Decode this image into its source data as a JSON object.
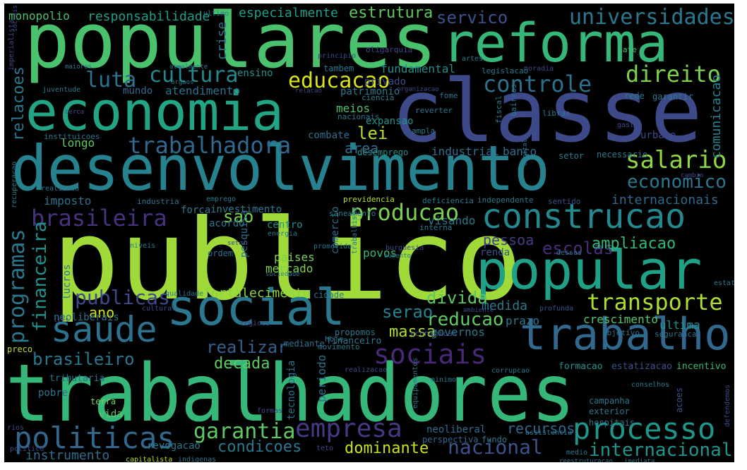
{
  "words": [
    {
      "text": "trabalhadores",
      "color": "#35b779"
    },
    {
      "text": "publico",
      "color": "#a0da39"
    },
    {
      "text": "classe",
      "color": "#3e4989"
    },
    {
      "text": "populares",
      "color": "#4ac16d"
    },
    {
      "text": "desenvolvimento",
      "color": "#26828e"
    },
    {
      "text": "economia",
      "color": "#21a585"
    },
    {
      "text": "reforma",
      "color": "#35b779"
    },
    {
      "text": "social",
      "color": "#2a788e"
    },
    {
      "text": "popular",
      "color": "#1fa187"
    },
    {
      "text": "trabalho",
      "color": "#31688e"
    },
    {
      "text": "construcao",
      "color": "#23898e"
    },
    {
      "text": "saude",
      "color": "#2c728e"
    },
    {
      "text": "processo",
      "color": "#1f968b"
    },
    {
      "text": "politicas",
      "color": "#31688e"
    },
    {
      "text": "sociais",
      "color": "#482878"
    },
    {
      "text": "empresa",
      "color": "#443983"
    },
    {
      "text": "transporte",
      "color": "#addc30"
    },
    {
      "text": "universidades",
      "color": "#2a788e"
    },
    {
      "text": "servico",
      "color": "#3b528b"
    },
    {
      "text": "salario",
      "color": "#90d743"
    },
    {
      "text": "economico",
      "color": "#2a788e"
    },
    {
      "text": "direito",
      "color": "#7ad151"
    },
    {
      "text": "controle",
      "color": "#2d708e"
    },
    {
      "text": "cultura",
      "color": "#23898e"
    },
    {
      "text": "educacao",
      "color": "#d8e219"
    },
    {
      "text": "luta",
      "color": "#2c728e"
    },
    {
      "text": "trabalhadora",
      "color": "#31688e"
    },
    {
      "text": "brasileira",
      "color": "#46327e"
    },
    {
      "text": "producao",
      "color": "#7ad151"
    },
    {
      "text": "garantia",
      "color": "#5ec962"
    },
    {
      "text": "nacional",
      "color": "#3b528b"
    },
    {
      "text": "internacional",
      "color": "#1f968b"
    },
    {
      "text": "programas",
      "color": "#2a788e"
    },
    {
      "text": "financeira",
      "color": "#21918c"
    },
    {
      "text": "publicas",
      "color": "#3e4989"
    },
    {
      "text": "condicoes",
      "color": "#2a788e"
    },
    {
      "text": "brasileiro",
      "color": "#2a788e"
    },
    {
      "text": "reducao",
      "color": "#5ec962"
    },
    {
      "text": "recursos",
      "color": "#31688e"
    },
    {
      "text": "estrutura",
      "color": "#5ec962"
    },
    {
      "text": "escolas",
      "color": "#472d7b"
    },
    {
      "text": "ampliacao",
      "color": "#35b779"
    },
    {
      "text": "relacoes",
      "color": "#2a788e"
    },
    {
      "text": "decada",
      "color": "#5ec962"
    },
    {
      "text": "realizar",
      "color": "#355f8d"
    },
    {
      "text": "divida",
      "color": "#5ec962"
    },
    {
      "text": "massa",
      "color": "#b5de2b"
    },
    {
      "text": "dominante",
      "color": "#c8e020"
    },
    {
      "text": "serao",
      "color": "#26828e"
    },
    {
      "text": "lei",
      "color": "#b5de2b"
    },
    {
      "text": "area",
      "color": "#2c728e"
    },
    {
      "text": "sao",
      "color": "#7ad151"
    },
    {
      "text": "ano",
      "color": "#d8e219"
    },
    {
      "text": "responsabilidade",
      "color": "#1f9e89"
    },
    {
      "text": "especialmente",
      "color": "#1f9e89"
    },
    {
      "text": "monopolio",
      "color": "#4ac16d"
    },
    {
      "text": "crise",
      "color": "#2c728e"
    },
    {
      "text": "fundamental",
      "color": "#228d8d"
    },
    {
      "text": "comunicacao",
      "color": "#26828e"
    },
    {
      "text": "internacionais",
      "color": "#31688e"
    },
    {
      "text": "pessoa",
      "color": "#433d84"
    },
    {
      "text": "medida",
      "color": "#2a788e"
    },
    {
      "text": "prazo",
      "color": "#2a788e"
    },
    {
      "text": "crescimento",
      "color": "#52c569"
    },
    {
      "text": "ultima",
      "color": "#21918c"
    },
    {
      "text": "governos",
      "color": "#2a788e"
    },
    {
      "text": "instrumento",
      "color": "#2e6e8e"
    },
    {
      "text": "industrial",
      "color": "#2e6e8e"
    },
    {
      "text": "banco",
      "color": "#2e6e8e"
    },
    {
      "text": "mercado",
      "color": "#7ad151"
    },
    {
      "text": "paises",
      "color": "#7ad151"
    },
    {
      "text": "periodo",
      "color": "#2c728e"
    },
    {
      "text": "tecnologia",
      "color": "#2e6e8e"
    },
    {
      "text": "imposto",
      "color": "#2c728e"
    },
    {
      "text": "longo",
      "color": "#5ec962"
    },
    {
      "text": "fortalecimento",
      "color": "#8bd646"
    },
    {
      "text": "atendimento",
      "color": "#2c728e"
    },
    {
      "text": "mundo",
      "color": "#31688e"
    },
    {
      "text": "ensino",
      "color": "#21918c"
    },
    {
      "text": "meios",
      "color": "#4ac16d"
    },
    {
      "text": "expansao",
      "color": "#21918c"
    },
    {
      "text": "combate",
      "color": "#2e6e8e"
    },
    {
      "text": "visando",
      "color": "#2a788e"
    },
    {
      "text": "centro",
      "color": "#21918c"
    },
    {
      "text": "comercio",
      "color": "#2c728e"
    },
    {
      "text": "investimento",
      "color": "#2a788e"
    },
    {
      "text": "forca",
      "color": "#2a788e"
    },
    {
      "text": "acordo",
      "color": "#2a788e"
    },
    {
      "text": "pesquisa",
      "color": "#2c728e"
    },
    {
      "text": "ordem",
      "color": "#2c728e"
    },
    {
      "text": "povos",
      "color": "#35b779"
    },
    {
      "text": "renda",
      "color": "#3b528b"
    },
    {
      "text": "lucros",
      "color": "#2c728e"
    },
    {
      "text": "neoliberais",
      "color": "#2c728e"
    },
    {
      "text": "neoliberal",
      "color": "#2e6e8e"
    },
    {
      "text": "perspectiva",
      "color": "#31688e"
    },
    {
      "text": "revogacao",
      "color": "#2a788e"
    },
    {
      "text": "fundo",
      "color": "#2a788e"
    },
    {
      "text": "campanha",
      "color": "#2a788e"
    },
    {
      "text": "exterior",
      "color": "#2a788e"
    },
    {
      "text": "hospitais",
      "color": "#2a788e"
    },
    {
      "text": "acoes",
      "color": "#3b528b"
    },
    {
      "text": "estatizacao",
      "color": "#3b528b"
    },
    {
      "text": "incentivo",
      "color": "#35b779"
    },
    {
      "text": "formacao",
      "color": "#21918c"
    },
    {
      "text": "tributaria",
      "color": "#2c728e"
    },
    {
      "text": "pobre",
      "color": "#2c728e"
    },
    {
      "text": "vida",
      "color": "#5ec962"
    },
    {
      "text": "terra",
      "color": "#7ad151"
    },
    {
      "text": "financeiro",
      "color": "#2a788e"
    },
    {
      "text": "mediante",
      "color": "#2c728e"
    },
    {
      "text": "movimento",
      "color": "#2a788e"
    },
    {
      "text": "hoje",
      "color": "#2a788e"
    },
    {
      "text": "propomos",
      "color": "#2a788e"
    },
    {
      "text": "economicas",
      "color": "#3b528b"
    },
    {
      "text": "objetivo",
      "color": "#2a788e"
    },
    {
      "text": "seguranca",
      "color": "#2c728e"
    },
    {
      "text": "setor",
      "color": "#2a788e"
    },
    {
      "text": "necessario",
      "color": "#2a788e"
    },
    {
      "text": "urbano",
      "color": "#3e4989"
    },
    {
      "text": "fome",
      "color": "#2c728e"
    },
    {
      "text": "rede",
      "color": "#2a788e"
    },
    {
      "text": "garantir",
      "color": "#2a788e"
    },
    {
      "text": "privado",
      "color": "#3e4989"
    },
    {
      "text": "patrimonio",
      "color": "#2a788e"
    },
    {
      "text": "tambem",
      "color": "#2a788e"
    },
    {
      "text": "desemprego",
      "color": "#21918c"
    },
    {
      "text": "ampla",
      "color": "#2a788e"
    },
    {
      "text": "nacionais",
      "color": "#2a788e"
    },
    {
      "text": "ciencia",
      "color": "#2a788e"
    },
    {
      "text": "reverter",
      "color": "#2a788e"
    },
    {
      "text": "legislacao",
      "color": "#2a788e"
    },
    {
      "text": "deficiencia",
      "color": "#2a788e"
    },
    {
      "text": "previdencia",
      "color": "#b5de2b"
    },
    {
      "text": "saneamento",
      "color": "#2a788e"
    },
    {
      "text": "independente",
      "color": "#2a788e"
    },
    {
      "text": "sentido",
      "color": "#3b528b"
    },
    {
      "text": "interna",
      "color": "#2a788e"
    },
    {
      "text": "industria",
      "color": "#2a788e"
    },
    {
      "text": "emprego",
      "color": "#2a788e"
    },
    {
      "text": "promovida",
      "color": "#2a788e"
    },
    {
      "text": "energia",
      "color": "#2a788e"
    },
    {
      "text": "burguesia",
      "color": "#3e4989"
    },
    {
      "text": "aumento",
      "color": "#2a788e"
    },
    {
      "text": "sociedade",
      "color": "#2a788e"
    },
    {
      "text": "dessas",
      "color": "#2a788e"
    },
    {
      "text": "cidade",
      "color": "#2a788e"
    },
    {
      "text": "profunda",
      "color": "#3b528b"
    },
    {
      "text": "estatal",
      "color": "#2a788e"
    },
    {
      "text": "qualidade",
      "color": "#2a788e"
    },
    {
      "text": "regioes",
      "color": "#3e4989"
    },
    {
      "text": "cultural",
      "color": "#3e4989"
    },
    {
      "text": "ambiente",
      "color": "#3e4989"
    },
    {
      "text": "libras",
      "color": "#2a788e"
    },
    {
      "text": "bairros",
      "color": "#2a788e"
    },
    {
      "text": "fiscal",
      "color": "#2a788e"
    },
    {
      "text": "gasto",
      "color": "#3e4989"
    },
    {
      "text": "capital",
      "color": "#2a788e"
    },
    {
      "text": "realizada",
      "color": "#2a788e"
    },
    {
      "text": "recuperacao",
      "color": "#2a788e"
    },
    {
      "text": "instituicoes",
      "color": "#2a788e"
    },
    {
      "text": "juventude",
      "color": "#2a788e"
    },
    {
      "text": "maiores",
      "color": "#2a788e"
    },
    {
      "text": "atualmente",
      "color": "#2a788e"
    },
    {
      "text": "orgaos",
      "color": "#2a788e"
    },
    {
      "text": "relacao",
      "color": "#3e4989"
    },
    {
      "text": "organizacao",
      "color": "#3e4989"
    },
    {
      "text": "principio",
      "color": "#3e4989"
    },
    {
      "text": "oligarquia",
      "color": "#3e4989"
    },
    {
      "text": "artes",
      "color": "#2a788e"
    },
    {
      "text": "ate",
      "color": "#4ac16d"
    },
    {
      "text": "moradia",
      "color": "#3e4989"
    },
    {
      "text": "ultimo",
      "color": "#2a788e"
    },
    {
      "text": "imperialista",
      "color": "#3e4989"
    },
    {
      "text": "sociais",
      "color": "#3e4989"
    },
    {
      "text": "niveis",
      "color": "#2a788e"
    },
    {
      "text": "setoi",
      "color": "#3e4989"
    },
    {
      "text": "preco",
      "color": "#b5de2b"
    },
    {
      "text": "rios",
      "color": "#3e4989"
    },
    {
      "text": "politico",
      "color": "#3e4989"
    },
    {
      "text": "formas",
      "color": "#3e4989"
    },
    {
      "text": "teto",
      "color": "#3e4989"
    },
    {
      "text": "realizacao",
      "color": "#3e4989"
    },
    {
      "text": "minimo",
      "color": "#2a788e"
    },
    {
      "text": "corrupcao",
      "color": "#2a788e"
    },
    {
      "text": "conselhos",
      "color": "#2a788e"
    },
    {
      "text": "defendemos",
      "color": "#3e4989"
    },
    {
      "text": "equipamentos",
      "color": "#2a788e"
    },
    {
      "text": "trabalhista",
      "color": "#2a788e"
    },
    {
      "text": "assistencia",
      "color": "#2a788e"
    },
    {
      "text": "medio",
      "color": "#2a788e"
    },
    {
      "text": "imediata",
      "color": "#2a788e"
    },
    {
      "text": "capitalista",
      "color": "#b5de2b"
    },
    {
      "text": "indigenas",
      "color": "#2a788e"
    },
    {
      "text": "reestruturacao",
      "color": "#2a788e"
    },
    {
      "text": "cerca",
      "color": "#3e4989"
    },
    {
      "text": "cambio",
      "color": "#3e4989"
    },
    {
      "text": "tres",
      "color": "#3e4989"
    }
  ]
}
